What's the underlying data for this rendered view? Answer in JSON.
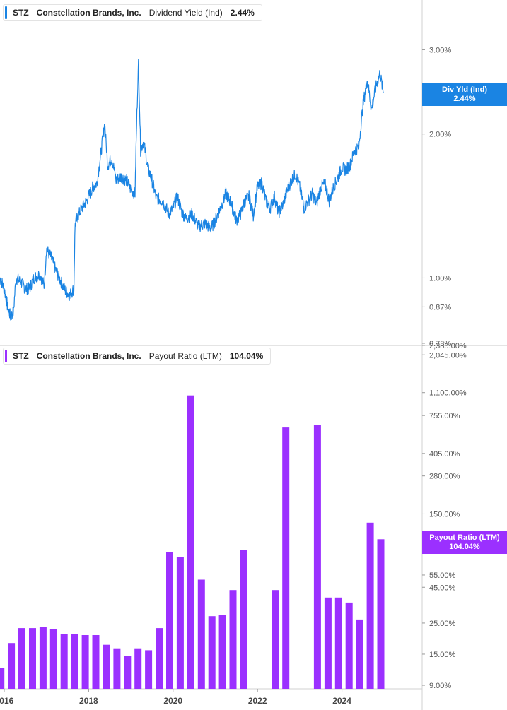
{
  "colors": {
    "yield_line": "#1a84e3",
    "payout_bar": "#9b30ff",
    "grid": "#e6e6e6",
    "tick_text": "#555555"
  },
  "top_legend": {
    "ticker": "STZ",
    "company": "Constellation Brands, Inc.",
    "metric": "Dividend Yield (Ind)",
    "value": "2.44%"
  },
  "bottom_legend": {
    "ticker": "STZ",
    "company": "Constellation Brands, Inc.",
    "metric": "Payout Ratio (LTM)",
    "value": "104.04%"
  },
  "top_label": {
    "line1": "Div Yld (Ind)",
    "line2": "2.44%"
  },
  "bottom_label": {
    "line1": "Payout Ratio (LTM)",
    "line2": "104.04%"
  },
  "chart_data": [
    {
      "type": "line",
      "series": [
        {
          "name": "Dividend Yield (Ind)"
        }
      ],
      "y_scale": "log",
      "y_ticks": [
        {
          "value": 3.0,
          "label": "3.00%"
        },
        {
          "value": 2.0,
          "label": "2.00%"
        },
        {
          "value": 1.0,
          "label": "1.00%"
        },
        {
          "value": 0.87,
          "label": "0.87%"
        },
        {
          "value": 0.73,
          "label": "0.73%"
        }
      ],
      "anchors": [
        [
          2015.9,
          1.0
        ],
        [
          2016.0,
          0.95
        ],
        [
          2016.08,
          0.87
        ],
        [
          2016.15,
          0.83
        ],
        [
          2016.22,
          0.85
        ],
        [
          2016.28,
          1.0
        ],
        [
          2016.4,
          0.98
        ],
        [
          2016.5,
          0.95
        ],
        [
          2016.6,
          0.95
        ],
        [
          2016.7,
          1.0
        ],
        [
          2016.85,
          1.02
        ],
        [
          2016.95,
          0.96
        ],
        [
          2017.0,
          1.15
        ],
        [
          2017.1,
          1.11
        ],
        [
          2017.2,
          1.05
        ],
        [
          2017.3,
          1.0
        ],
        [
          2017.45,
          0.94
        ],
        [
          2017.55,
          0.92
        ],
        [
          2017.65,
          0.95
        ],
        [
          2017.68,
          1.3
        ],
        [
          2017.8,
          1.38
        ],
        [
          2017.95,
          1.45
        ],
        [
          2018.1,
          1.55
        ],
        [
          2018.2,
          1.58
        ],
        [
          2018.3,
          1.85
        ],
        [
          2018.38,
          2.1
        ],
        [
          2018.45,
          1.72
        ],
        [
          2018.55,
          1.78
        ],
        [
          2018.65,
          1.6
        ],
        [
          2018.75,
          1.63
        ],
        [
          2018.9,
          1.6
        ],
        [
          2019.0,
          1.53
        ],
        [
          2019.1,
          1.5
        ],
        [
          2019.18,
          2.8
        ],
        [
          2019.23,
          1.85
        ],
        [
          2019.3,
          1.93
        ],
        [
          2019.4,
          1.7
        ],
        [
          2019.5,
          1.6
        ],
        [
          2019.6,
          1.47
        ],
        [
          2019.75,
          1.45
        ],
        [
          2019.9,
          1.36
        ],
        [
          2020.0,
          1.4
        ],
        [
          2020.1,
          1.48
        ],
        [
          2020.2,
          1.38
        ],
        [
          2020.3,
          1.33
        ],
        [
          2020.45,
          1.36
        ],
        [
          2020.6,
          1.28
        ],
        [
          2020.75,
          1.3
        ],
        [
          2020.9,
          1.27
        ],
        [
          2021.0,
          1.32
        ],
        [
          2021.15,
          1.42
        ],
        [
          2021.25,
          1.5
        ],
        [
          2021.35,
          1.45
        ],
        [
          2021.5,
          1.32
        ],
        [
          2021.6,
          1.36
        ],
        [
          2021.7,
          1.45
        ],
        [
          2021.8,
          1.48
        ],
        [
          2021.9,
          1.35
        ],
        [
          2022.0,
          1.55
        ],
        [
          2022.1,
          1.58
        ],
        [
          2022.2,
          1.45
        ],
        [
          2022.3,
          1.4
        ],
        [
          2022.4,
          1.48
        ],
        [
          2022.5,
          1.37
        ],
        [
          2022.6,
          1.42
        ],
        [
          2022.7,
          1.52
        ],
        [
          2022.8,
          1.6
        ],
        [
          2022.9,
          1.65
        ],
        [
          2023.0,
          1.55
        ],
        [
          2023.1,
          1.4
        ],
        [
          2023.2,
          1.45
        ],
        [
          2023.3,
          1.5
        ],
        [
          2023.4,
          1.43
        ],
        [
          2023.5,
          1.55
        ],
        [
          2023.6,
          1.57
        ],
        [
          2023.7,
          1.45
        ],
        [
          2023.8,
          1.55
        ],
        [
          2023.9,
          1.62
        ],
        [
          2024.0,
          1.7
        ],
        [
          2024.1,
          1.68
        ],
        [
          2024.2,
          1.73
        ],
        [
          2024.3,
          1.85
        ],
        [
          2024.4,
          1.88
        ],
        [
          2024.5,
          2.3
        ],
        [
          2024.6,
          2.6
        ],
        [
          2024.7,
          2.25
        ],
        [
          2024.8,
          2.5
        ],
        [
          2024.9,
          2.68
        ],
        [
          2024.98,
          2.44
        ]
      ],
      "x_range": [
        2015.9,
        2025.9
      ],
      "y_range": [
        0.73,
        3.35
      ],
      "right_label": "Div Yld (Ind) 2.44%"
    },
    {
      "type": "bar",
      "series": [
        {
          "name": "Payout Ratio (LTM)"
        }
      ],
      "y_scale": "log",
      "y_ticks": [
        {
          "value": 2385,
          "label": "2,385.00%"
        },
        {
          "value": 2045,
          "label": "2,045.00%"
        },
        {
          "value": 1100,
          "label": "1,100.00%"
        },
        {
          "value": 755,
          "label": "755.00%"
        },
        {
          "value": 405,
          "label": "405.00%"
        },
        {
          "value": 280,
          "label": "280.00%"
        },
        {
          "value": 150,
          "label": "150.00%"
        },
        {
          "value": 55,
          "label": "55.00%"
        },
        {
          "value": 45,
          "label": "45.00%"
        },
        {
          "value": 25,
          "label": "25.00%"
        },
        {
          "value": 15,
          "label": "15.00%"
        },
        {
          "value": 9,
          "label": "9.00%"
        }
      ],
      "x": [
        2015.92,
        2016.17,
        2016.42,
        2016.67,
        2016.92,
        2017.17,
        2017.42,
        2017.67,
        2017.92,
        2018.17,
        2018.42,
        2018.67,
        2018.92,
        2019.17,
        2019.42,
        2019.67,
        2019.92,
        2020.17,
        2020.42,
        2020.67,
        2020.92,
        2021.17,
        2021.42,
        2021.67,
        2022.42,
        2022.67,
        2023.42,
        2023.67,
        2023.92,
        2024.17,
        2024.42,
        2024.67,
        2024.92
      ],
      "values": [
        12,
        18,
        23,
        23,
        23.5,
        22.5,
        21,
        21,
        20.5,
        20.5,
        17.5,
        16.5,
        14.5,
        16.5,
        16,
        23,
        80,
        74,
        1050,
        51,
        28,
        28.5,
        43,
        83,
        43,
        620,
        650,
        38,
        38,
        35,
        26.5,
        130,
        99
      ],
      "x_range": [
        2015.9,
        2025.9
      ],
      "y_range": [
        9,
        2385
      ],
      "right_label": "Payout Ratio (LTM) 104.04%"
    }
  ],
  "x_axis": {
    "ticks": [
      {
        "value": 2016,
        "label": "2016"
      },
      {
        "value": 2018,
        "label": "2018"
      },
      {
        "value": 2020,
        "label": "2020"
      },
      {
        "value": 2022,
        "label": "2022"
      },
      {
        "value": 2024,
        "label": "2024"
      }
    ]
  }
}
